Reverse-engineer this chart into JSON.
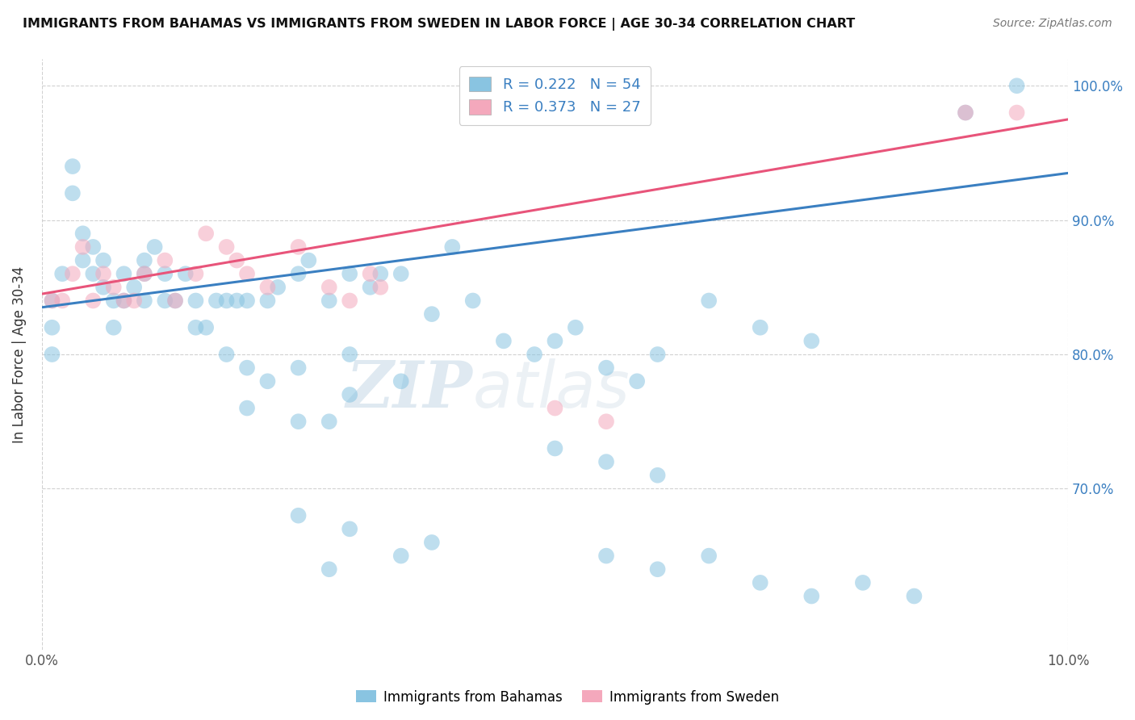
{
  "title": "IMMIGRANTS FROM BAHAMAS VS IMMIGRANTS FROM SWEDEN IN LABOR FORCE | AGE 30-34 CORRELATION CHART",
  "source_text": "Source: ZipAtlas.com",
  "ylabel": "In Labor Force | Age 30-34",
  "xlim": [
    0.0,
    0.1
  ],
  "ylim": [
    0.58,
    1.02
  ],
  "ytick_labels": [
    "70.0%",
    "80.0%",
    "90.0%",
    "100.0%"
  ],
  "ytick_vals": [
    0.7,
    0.8,
    0.9,
    1.0
  ],
  "xtick_labels": [
    "0.0%",
    "10.0%"
  ],
  "xtick_vals": [
    0.0,
    0.1
  ],
  "legend_r_blue": "R = 0.222",
  "legend_n_blue": "N = 54",
  "legend_r_pink": "R = 0.373",
  "legend_n_pink": "N = 27",
  "blue_color": "#89C4E1",
  "pink_color": "#F4A8BC",
  "blue_line_color": "#3A7FC1",
  "pink_line_color": "#E8547A",
  "watermark_zip": "ZIP",
  "watermark_atlas": "atlas",
  "blue_scatter_x": [
    0.001,
    0.001,
    0.001,
    0.002,
    0.003,
    0.003,
    0.004,
    0.004,
    0.005,
    0.005,
    0.006,
    0.006,
    0.007,
    0.007,
    0.008,
    0.008,
    0.009,
    0.01,
    0.01,
    0.011,
    0.012,
    0.012,
    0.013,
    0.014,
    0.015,
    0.016,
    0.017,
    0.018,
    0.019,
    0.02,
    0.022,
    0.023,
    0.025,
    0.026,
    0.028,
    0.03,
    0.032,
    0.033,
    0.035,
    0.038,
    0.04,
    0.042,
    0.045,
    0.048,
    0.05,
    0.052,
    0.055,
    0.058,
    0.06,
    0.065,
    0.07,
    0.075,
    0.09,
    0.095
  ],
  "blue_scatter_y": [
    0.84,
    0.82,
    0.8,
    0.86,
    0.94,
    0.92,
    0.89,
    0.87,
    0.88,
    0.86,
    0.87,
    0.85,
    0.84,
    0.82,
    0.84,
    0.86,
    0.85,
    0.87,
    0.86,
    0.88,
    0.84,
    0.86,
    0.84,
    0.86,
    0.84,
    0.82,
    0.84,
    0.84,
    0.84,
    0.84,
    0.84,
    0.85,
    0.86,
    0.87,
    0.84,
    0.86,
    0.85,
    0.86,
    0.86,
    0.83,
    0.88,
    0.84,
    0.81,
    0.8,
    0.81,
    0.82,
    0.79,
    0.78,
    0.8,
    0.84,
    0.82,
    0.81,
    0.98,
    1.0
  ],
  "blue_scatter_x2": [
    0.01,
    0.015,
    0.018,
    0.02,
    0.022,
    0.025,
    0.03,
    0.035,
    0.03,
    0.02,
    0.025,
    0.028,
    0.05,
    0.055,
    0.06,
    0.025,
    0.03,
    0.038,
    0.035,
    0.028,
    0.055,
    0.06,
    0.065,
    0.07,
    0.075,
    0.08,
    0.085
  ],
  "blue_scatter_y2": [
    0.84,
    0.82,
    0.8,
    0.79,
    0.78,
    0.79,
    0.8,
    0.78,
    0.77,
    0.76,
    0.75,
    0.75,
    0.73,
    0.72,
    0.71,
    0.68,
    0.67,
    0.66,
    0.65,
    0.64,
    0.65,
    0.64,
    0.65,
    0.63,
    0.62,
    0.63,
    0.62
  ],
  "pink_scatter_x": [
    0.001,
    0.002,
    0.003,
    0.004,
    0.005,
    0.006,
    0.007,
    0.008,
    0.009,
    0.01,
    0.012,
    0.013,
    0.015,
    0.016,
    0.018,
    0.019,
    0.02,
    0.022,
    0.025,
    0.028,
    0.03,
    0.032,
    0.033,
    0.05,
    0.055,
    0.09,
    0.095
  ],
  "pink_scatter_y": [
    0.84,
    0.84,
    0.86,
    0.88,
    0.84,
    0.86,
    0.85,
    0.84,
    0.84,
    0.86,
    0.87,
    0.84,
    0.86,
    0.89,
    0.88,
    0.87,
    0.86,
    0.85,
    0.88,
    0.85,
    0.84,
    0.86,
    0.85,
    0.76,
    0.75,
    0.98,
    0.98
  ],
  "blue_line_x": [
    0.0,
    0.1
  ],
  "blue_line_y": [
    0.835,
    0.935
  ],
  "pink_line_x": [
    0.0,
    0.1
  ],
  "pink_line_y": [
    0.845,
    0.975
  ]
}
